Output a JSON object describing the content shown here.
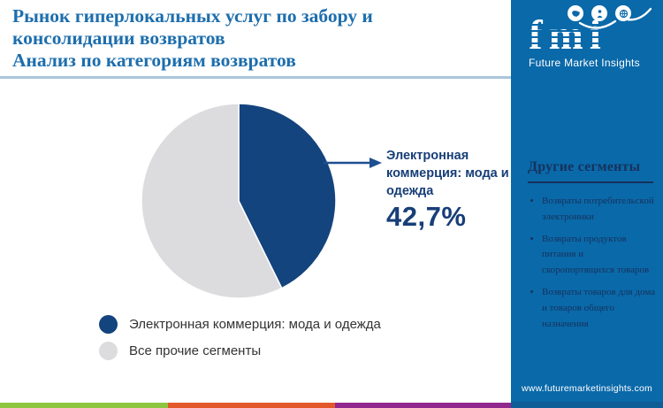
{
  "title": {
    "line1": "Рынок гиперлокальных услуг по забору и консолидации возвратов",
    "line2": "Анализ по категориям возвратов"
  },
  "logo": {
    "abbr": "fmi",
    "name": "Future Market Insights",
    "icons": [
      "map-icon",
      "person-icon",
      "globe-icon"
    ]
  },
  "sidebar": {
    "heading": "Другие сегменты",
    "items": [
      "Возвраты потребительской электроники",
      "Возвраты продуктов питания и скоропортящихся товаров",
      "Возвраты товаров для дома и товаров общего назначения"
    ],
    "website": "www.futuremarketinsights.com"
  },
  "callout": {
    "label": "Электронная коммерция: мода и одежда",
    "value": "42,7%"
  },
  "legend": [
    {
      "label": "Электронная коммерция: мода и одежда"
    },
    {
      "label": "Все прочие сегменты"
    }
  ],
  "chart_data": {
    "type": "pie",
    "title": "Анализ по категориям возвратов",
    "start_angle_deg": 0,
    "direction": "clockwise",
    "slices": [
      {
        "label": "Электронная коммерция: мода и одежда",
        "value": 42.7,
        "color": "#14447e"
      },
      {
        "label": "Все прочие сегменты",
        "value": 57.3,
        "color": "#dcdcde"
      }
    ],
    "annotation": {
      "text": "Электронная коммерция: мода и одежда",
      "value_label": "42,7%"
    },
    "legend_position": "bottom-left"
  },
  "colors": {
    "title-blue": "#1d6ead",
    "blue-sidebar": "#0a69a9",
    "blue-sidebar-dark": "#0d5d97",
    "navy-sidebar": "#16325c",
    "navy-callout": "#173e78",
    "arrow": "#1d4f91",
    "divider": "#a9c6dd",
    "stripe-green": "#8cc640",
    "stripe-orange": "#e2582a",
    "stripe-purple": "#92278f",
    "pie-blue": "#14447e",
    "pie-gray": "#dcdcde"
  }
}
